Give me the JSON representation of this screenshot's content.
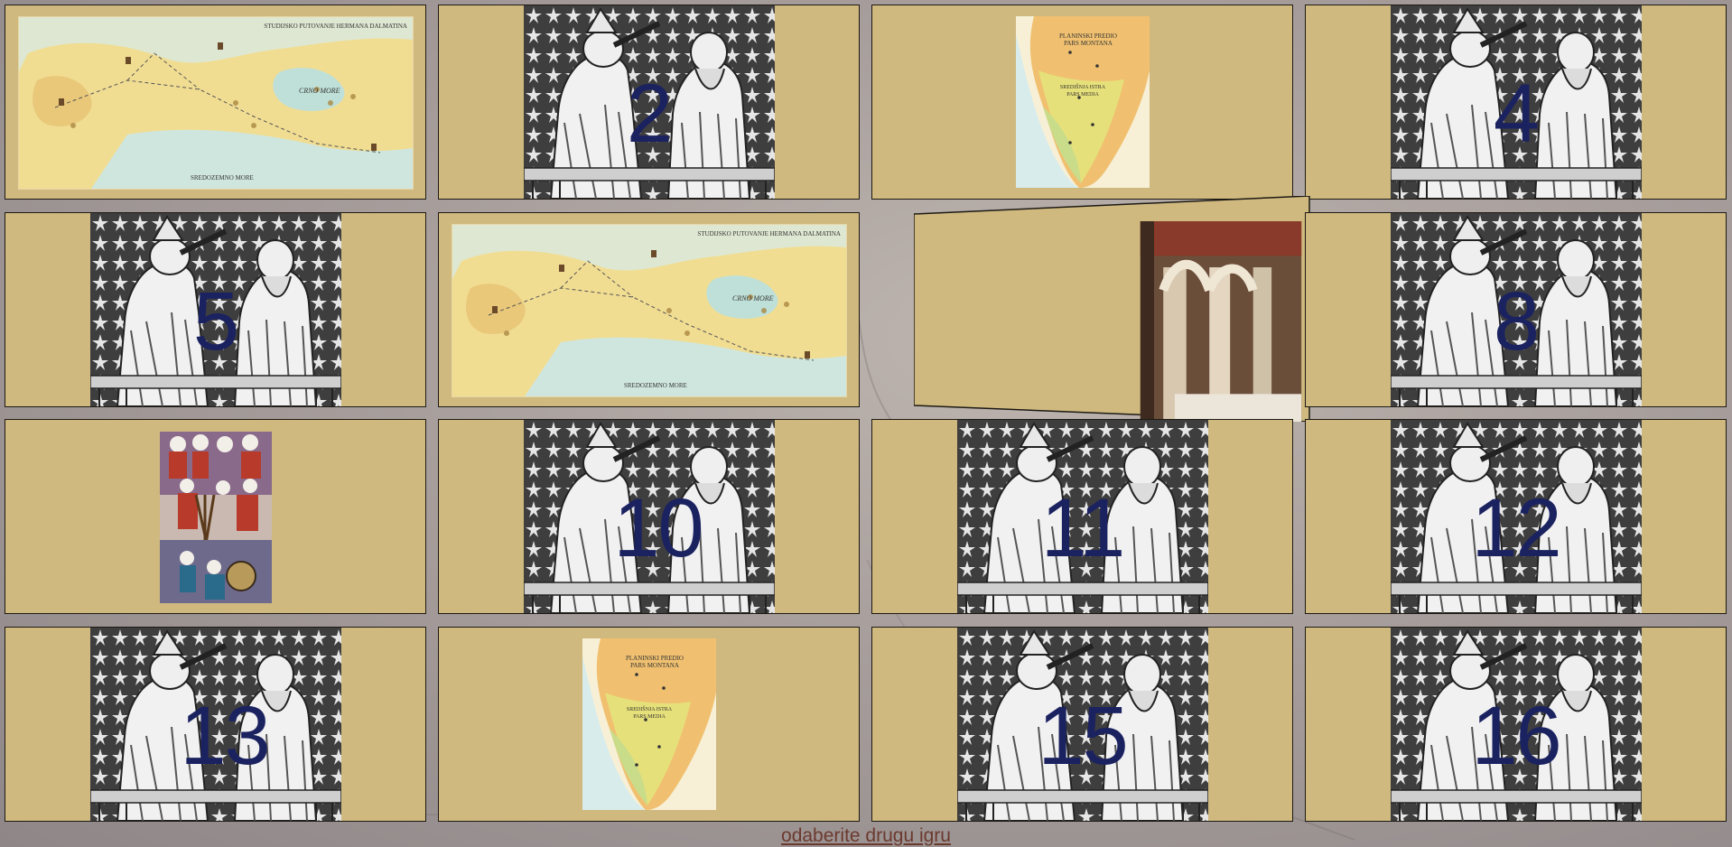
{
  "game": {
    "cards": [
      {
        "slot": 1,
        "state": "revealed",
        "image": "map-journey"
      },
      {
        "slot": 2,
        "state": "hidden",
        "label": "2"
      },
      {
        "slot": 3,
        "state": "revealed",
        "image": "map-istria"
      },
      {
        "slot": 4,
        "state": "hidden",
        "label": "4"
      },
      {
        "slot": 5,
        "state": "hidden",
        "label": "5"
      },
      {
        "slot": 6,
        "state": "revealed",
        "image": "map-journey"
      },
      {
        "slot": 7,
        "state": "flipping",
        "image": "cloister-photo"
      },
      {
        "slot": 8,
        "state": "hidden",
        "label": "8"
      },
      {
        "slot": 9,
        "state": "revealed",
        "image": "astronomers-miniature"
      },
      {
        "slot": 10,
        "state": "hidden",
        "label": "10"
      },
      {
        "slot": 11,
        "state": "hidden",
        "label": "11"
      },
      {
        "slot": 12,
        "state": "hidden",
        "label": "12"
      },
      {
        "slot": 13,
        "state": "hidden",
        "label": "13"
      },
      {
        "slot": 14,
        "state": "revealed",
        "image": "map-istria"
      },
      {
        "slot": 15,
        "state": "hidden",
        "label": "15"
      },
      {
        "slot": 16,
        "state": "hidden",
        "label": "16"
      }
    ],
    "map_journey": {
      "title": "STUDIJSKO PUTOVANJE HERMANA DALMATINA",
      "sea_black": "CRNO MORE",
      "sea_med": "SREDOZEMNO MORE"
    },
    "map_istria": {
      "line1": "PLANINSKI PREDIO",
      "line2": "PARS MONTANA",
      "line3": "SREDIŠNJA ISTRA",
      "line4": "PARS MEDIA"
    }
  },
  "footer": {
    "link_label": "odaberite drugu igru"
  },
  "colors": {
    "card_bg": "#cfb97f",
    "number": "#1b2260",
    "link": "#6b3a2e"
  },
  "icons": [
    "engraving-image",
    "map-image",
    "photo-image"
  ]
}
